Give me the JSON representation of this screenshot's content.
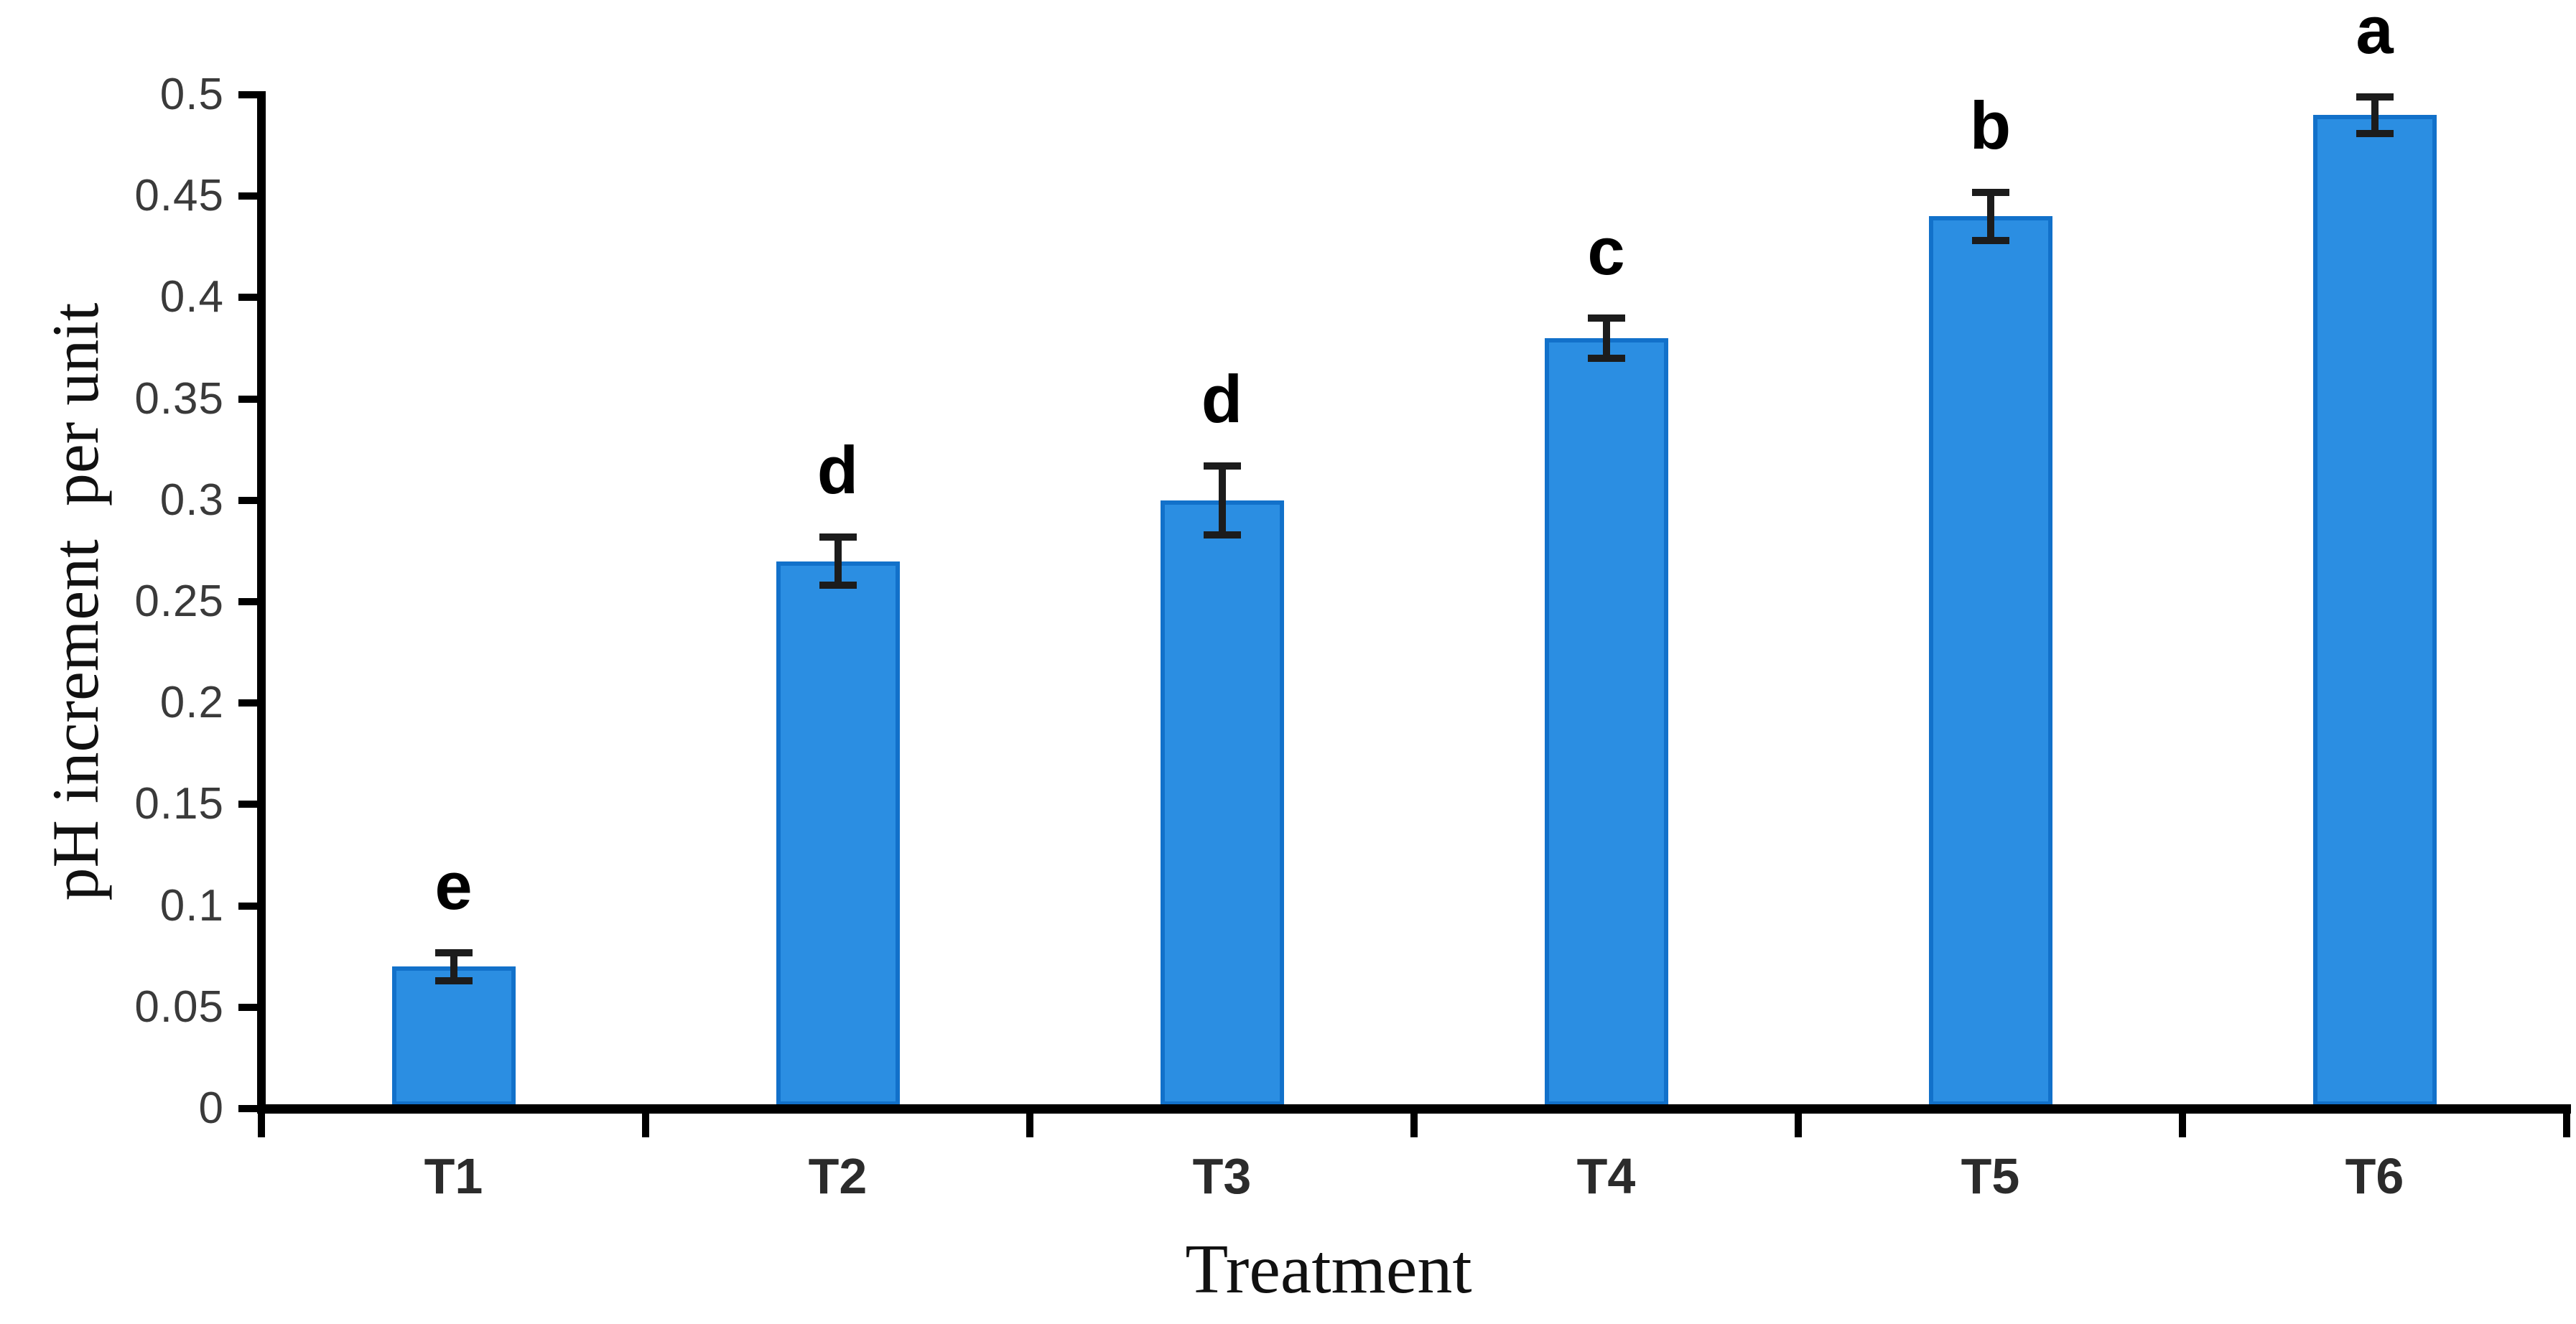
{
  "page": {
    "background_color": "#ffffff"
  },
  "chart_data": {
    "type": "bar",
    "title": "",
    "categories": [
      "T1",
      "T2",
      "T3",
      "T4",
      "T5",
      "T6"
    ],
    "values": [
      0.07,
      0.27,
      0.3,
      0.38,
      0.44,
      0.49
    ],
    "error_bars": [
      0.007,
      0.012,
      0.017,
      0.01,
      0.012,
      0.009
    ],
    "significance_letters": [
      "e",
      "d",
      "d",
      "c",
      "b",
      "a"
    ],
    "xlabel": "Treatment",
    "ylabel": "pH increment  per unit",
    "ylim": [
      0,
      0.5
    ],
    "y_tick_step": 0.05,
    "y_tick_labels": [
      "0",
      "0.05",
      "0.1",
      "0.15",
      "0.2",
      "0.25",
      "0.3",
      "0.35",
      "0.4",
      "0.45",
      "0.5"
    ],
    "grid": false,
    "legend": "none",
    "bar_fill_color": "#2b8ee2",
    "bar_border_color": "#1271ca",
    "error_bar_color": "#1c1c1c",
    "axis_color": "#000000",
    "tick_label_color": "#3a3a3a",
    "letter_color": "#000000"
  }
}
